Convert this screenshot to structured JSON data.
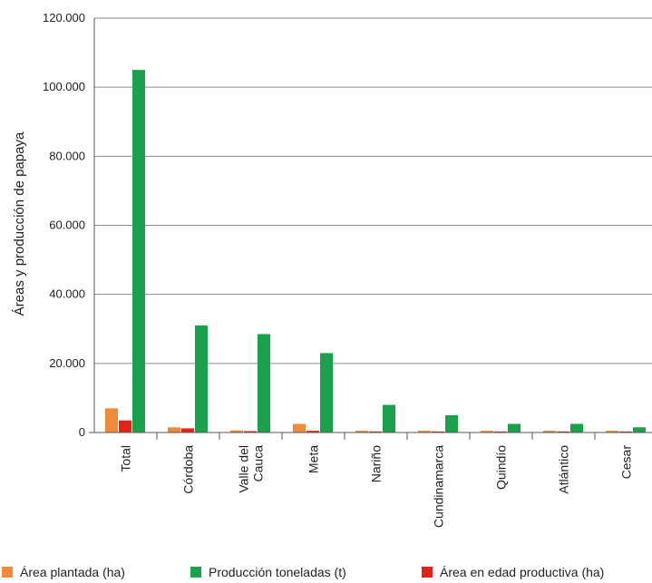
{
  "chart_data": {
    "type": "bar",
    "title": "",
    "xlabel": "",
    "ylabel": "Áreas y producción de papaya",
    "ylim": [
      0,
      120000
    ],
    "yticks": [
      0,
      20000,
      40000,
      60000,
      80000,
      100000,
      120000
    ],
    "ytick_labels": [
      "0",
      "20.000",
      "40.000",
      "60.000",
      "80.000",
      "100.000",
      "120.000"
    ],
    "grid": true,
    "legend_position": "bottom",
    "categories": [
      [
        "Total"
      ],
      [
        "Córdoba"
      ],
      [
        "Valle del",
        "Cauca"
      ],
      [
        "Meta"
      ],
      [
        "Nariño"
      ],
      [
        "Cundinamarca"
      ],
      [
        "Quindío"
      ],
      [
        "Atlántico"
      ],
      [
        "Cesar"
      ]
    ],
    "series": [
      {
        "name": "Área plantada (ha)",
        "color": "#ef8a3a",
        "values": [
          7000,
          1500,
          600,
          2500,
          500,
          500,
          500,
          500,
          500
        ]
      },
      {
        "name": "Área en edad productiva (ha)",
        "color": "#e2231a",
        "values": [
          3500,
          1200,
          400,
          500,
          300,
          300,
          300,
          300,
          300
        ]
      },
      {
        "name": "Producción toneladas (t)",
        "color": "#1aa14c",
        "values": [
          105000,
          31000,
          28500,
          23000,
          8000,
          5000,
          2500,
          2500,
          1500
        ]
      }
    ],
    "legend_order": [
      "Área plantada (ha)",
      "Producción toneladas (t)",
      "Área en edad productiva (ha)"
    ]
  }
}
